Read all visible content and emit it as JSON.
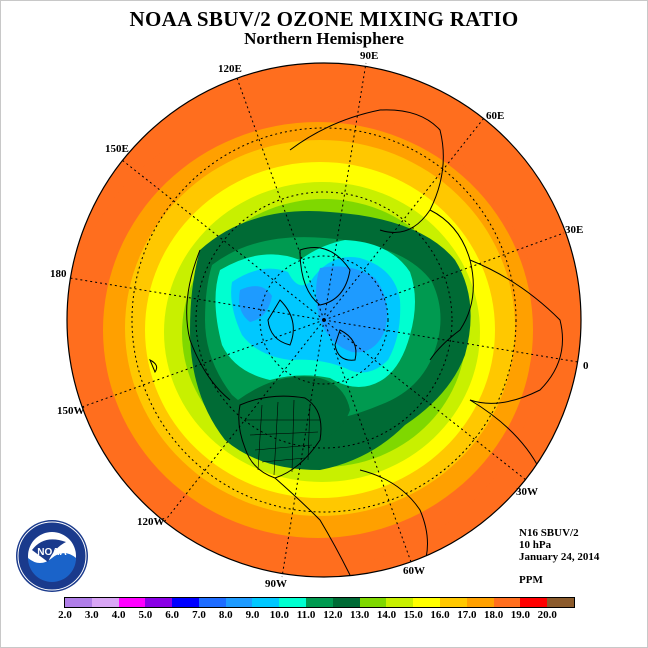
{
  "title": "NOAA SBUV/2 OZONE MIXING RATIO",
  "subtitle": "Northern Hemisphere",
  "longitude_labels": [
    "90E",
    "60E",
    "30E",
    "0",
    "30W",
    "60W",
    "90W",
    "120W",
    "150W",
    "180",
    "150E",
    "120E"
  ],
  "info": {
    "instrument": "N16 SBUV/2",
    "level": "10 hPa",
    "date": "January 24, 2014",
    "units": "PPM"
  },
  "colorbar": {
    "ticks": [
      "2.0",
      "3.0",
      "4.0",
      "5.0",
      "6.0",
      "7.0",
      "8.0",
      "9.0",
      "10.0",
      "11.0",
      "12.0",
      "13.0",
      "14.0",
      "15.0",
      "16.0",
      "17.0",
      "18.0",
      "19.0",
      "20.0"
    ],
    "colors": [
      "#b07ee8",
      "#d9a6f5",
      "#ff00ff",
      "#8a00e6",
      "#0000ff",
      "#1e6cff",
      "#1e9bff",
      "#00c8ff",
      "#00ffd0",
      "#009a50",
      "#006b35",
      "#7fd800",
      "#c8f000",
      "#ffff00",
      "#ffc800",
      "#ffa000",
      "#ff6e1e",
      "#ff0000",
      "#8b5a2b"
    ]
  },
  "logo": {
    "text": "NOAA",
    "ring_text": "NATIONAL OCEANIC AND ATMOSPHERIC ADMINISTRATION · U.S. DEPARTMENT OF COMMERCE"
  }
}
